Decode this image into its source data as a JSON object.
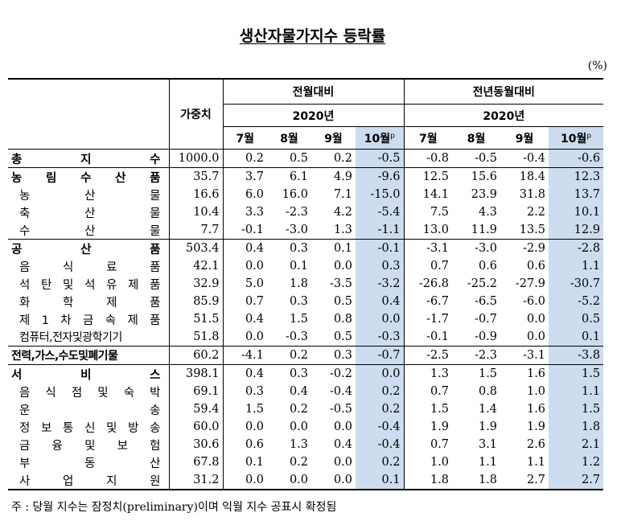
{
  "title": "생산자물가지수 등락률",
  "unit": "(%)",
  "headers": {
    "weight": "가중치",
    "mom": "전월대비",
    "yoy": "전년동월대비",
    "year": "2020년",
    "months": [
      "7월",
      "8월",
      "9월",
      "10월"
    ],
    "prelim_mark": "p"
  },
  "rows": [
    {
      "label": "총 지 수",
      "weight": "1000.0",
      "mom": [
        "0.2",
        "0.5",
        "0.2",
        "-0.5"
      ],
      "yoy": [
        "-0.8",
        "-0.5",
        "-0.4",
        "-0.6"
      ]
    },
    {
      "label": "농 림 수 산 품",
      "weight": "35.7",
      "mom": [
        "3.7",
        "6.1",
        "4.9",
        "-9.6"
      ],
      "yoy": [
        "12.5",
        "15.6",
        "18.4",
        "12.3"
      ]
    },
    {
      "label": "농 산 물",
      "weight": "16.6",
      "mom": [
        "6.0",
        "16.0",
        "7.1",
        "-15.0"
      ],
      "yoy": [
        "14.1",
        "23.9",
        "31.8",
        "13.7"
      ]
    },
    {
      "label": "축 산 물",
      "weight": "10.4",
      "mom": [
        "3.3",
        "-2.3",
        "4.2",
        "-5.4"
      ],
      "yoy": [
        "7.5",
        "4.3",
        "2.2",
        "10.1"
      ]
    },
    {
      "label": "수 산 물",
      "weight": "7.7",
      "mom": [
        "-0.1",
        "-3.0",
        "1.3",
        "-1.1"
      ],
      "yoy": [
        "13.0",
        "11.9",
        "13.5",
        "12.9"
      ]
    },
    {
      "label": "공 산 품",
      "weight": "503.4",
      "mom": [
        "0.4",
        "0.3",
        "0.1",
        "-0.1"
      ],
      "yoy": [
        "-3.1",
        "-3.0",
        "-2.9",
        "-2.8"
      ]
    },
    {
      "label": "음 식 료 품",
      "weight": "42.1",
      "mom": [
        "0.0",
        "0.1",
        "0.0",
        "0.3"
      ],
      "yoy": [
        "0.7",
        "0.6",
        "0.6",
        "1.1"
      ]
    },
    {
      "label": "석 탄 및 석 유 제 품",
      "weight": "32.9",
      "mom": [
        "5.0",
        "1.8",
        "-3.5",
        "-3.2"
      ],
      "yoy": [
        "-26.8",
        "-25.2",
        "-27.9",
        "-30.7"
      ]
    },
    {
      "label": "화 학 제 품",
      "weight": "85.9",
      "mom": [
        "0.7",
        "0.3",
        "0.5",
        "0.4"
      ],
      "yoy": [
        "-6.7",
        "-6.5",
        "-6.0",
        "-5.2"
      ]
    },
    {
      "label": "제 1 차 금 속 제 품",
      "weight": "51.5",
      "mom": [
        "0.4",
        "1.5",
        "0.8",
        "0.0"
      ],
      "yoy": [
        "-1.7",
        "-0.7",
        "0.0",
        "0.5"
      ]
    },
    {
      "label": "컴퓨터,전자및광학기기",
      "weight": "51.8",
      "mom": [
        "0.0",
        "-0.3",
        "0.5",
        "-0.3"
      ],
      "yoy": [
        "-0.1",
        "-0.9",
        "0.0",
        "0.1"
      ]
    },
    {
      "label": "전력,가스,수도및폐기물",
      "weight": "60.2",
      "mom": [
        "-4.1",
        "0.2",
        "0.3",
        "-0.7"
      ],
      "yoy": [
        "-2.5",
        "-2.3",
        "-3.1",
        "-3.8"
      ]
    },
    {
      "label": "서 비 스",
      "weight": "398.1",
      "mom": [
        "0.4",
        "0.3",
        "-0.2",
        "0.0"
      ],
      "yoy": [
        "1.3",
        "1.5",
        "1.6",
        "1.5"
      ]
    },
    {
      "label": "음 식 점 및 숙 박",
      "weight": "69.1",
      "mom": [
        "0.3",
        "0.4",
        "-0.4",
        "0.2"
      ],
      "yoy": [
        "0.7",
        "0.8",
        "1.0",
        "1.1"
      ]
    },
    {
      "label": "운 송",
      "weight": "59.4",
      "mom": [
        "1.5",
        "0.2",
        "-0.5",
        "0.2"
      ],
      "yoy": [
        "1.5",
        "1.4",
        "1.6",
        "1.5"
      ]
    },
    {
      "label": "정 보 통 신 및 방 송",
      "weight": "60.0",
      "mom": [
        "0.0",
        "0.0",
        "0.0",
        "-0.4"
      ],
      "yoy": [
        "1.9",
        "1.9",
        "1.9",
        "1.8"
      ]
    },
    {
      "label": "금 융 및 보 험",
      "weight": "30.6",
      "mom": [
        "0.6",
        "1.3",
        "0.4",
        "-0.4"
      ],
      "yoy": [
        "0.7",
        "3.1",
        "2.6",
        "2.1"
      ]
    },
    {
      "label": "부 동 산",
      "weight": "67.8",
      "mom": [
        "0.1",
        "0.2",
        "0.0",
        "0.2"
      ],
      "yoy": [
        "1.0",
        "1.1",
        "1.1",
        "1.2"
      ]
    },
    {
      "label": "사 업 지 원",
      "weight": "31.2",
      "mom": [
        "0.0",
        "0.0",
        "0.0",
        "0.1"
      ],
      "yoy": [
        "1.8",
        "1.8",
        "2.7",
        "2.7"
      ]
    }
  ],
  "note": "주 : 당월 지수는 잠정치(preliminary)이며 익월 지수 공표시 확정됨"
}
